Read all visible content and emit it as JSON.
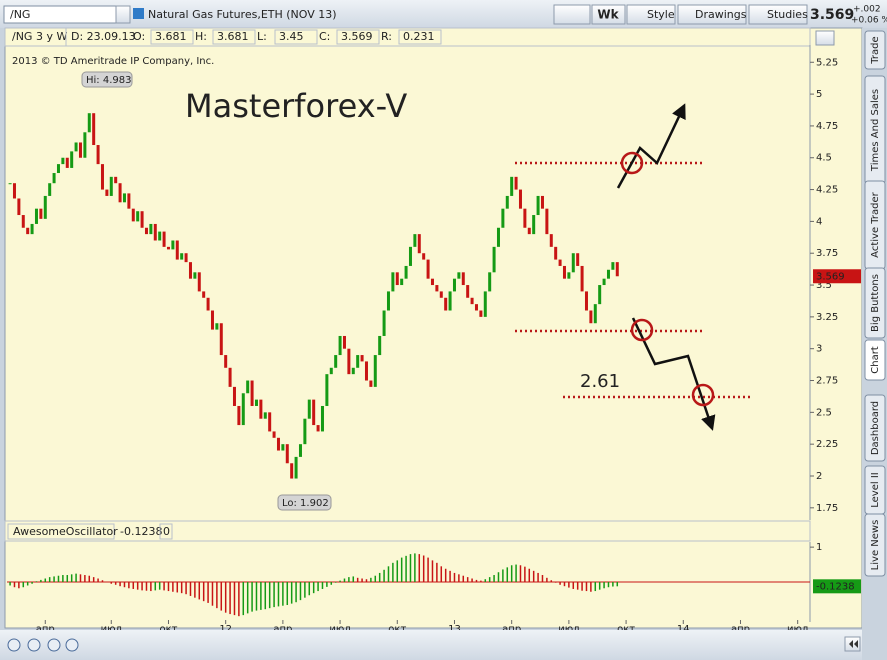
{
  "toolbar": {
    "symbol": "/NG",
    "description": "Natural Gas Futures,ETH (NOV 13)",
    "buttons": [
      "Wk",
      "Style",
      "Drawings",
      "Studies"
    ],
    "change": "+.002",
    "change_pct": "+0.06 %"
  },
  "info_bar": {
    "study": "/NG 3 y W",
    "date": "D: 23.09.13",
    "fields": [
      {
        "label": "O:",
        "value": 3.681
      },
      {
        "label": "H:",
        "value": 3.681
      },
      {
        "label": "L:",
        "value": 3.45
      },
      {
        "label": "C:",
        "value": 3.569
      },
      {
        "label": "R:",
        "value": 0.231
      }
    ]
  },
  "copyright": "2013 © TD Ameritrade IP Company, Inc.",
  "annotations": {
    "title": "Masterforex-V",
    "level": "2.61",
    "hi": "Hi: 4.983",
    "lo": "Lo: 1.902"
  },
  "sidebar": {
    "tabs": [
      "Trade",
      "Times And Sales",
      "Active Trader",
      "Big Buttons",
      "Chart",
      "Dashboard",
      "Level II",
      "Live News"
    ]
  },
  "chart_data": [
    {
      "type": "candlestick",
      "up_color": "#159a15",
      "down_color": "#c81414",
      "values": [
        4.3,
        4.18,
        4.05,
        3.95,
        3.9,
        3.98,
        4.1,
        4.02,
        4.2,
        4.3,
        4.38,
        4.45,
        4.5,
        4.42,
        4.55,
        4.62,
        4.5,
        4.7,
        4.85,
        4.6,
        4.45,
        4.25,
        4.2,
        4.35,
        4.3,
        4.15,
        4.22,
        4.1,
        4.0,
        4.08,
        3.95,
        3.9,
        3.98,
        3.85,
        3.92,
        3.8,
        3.78,
        3.85,
        3.7,
        3.75,
        3.68,
        3.55,
        3.6,
        3.45,
        3.4,
        3.3,
        3.15,
        3.2,
        2.95,
        2.85,
        2.7,
        2.55,
        2.4,
        2.65,
        2.75,
        2.55,
        2.6,
        2.45,
        2.5,
        2.35,
        2.3,
        2.2,
        2.25,
        2.1,
        1.98,
        2.15,
        2.25,
        2.45,
        2.6,
        2.4,
        2.35,
        2.55,
        2.8,
        2.85,
        2.95,
        3.1,
        3.0,
        2.8,
        2.85,
        2.95,
        2.9,
        2.75,
        2.7,
        2.95,
        3.1,
        3.3,
        3.45,
        3.6,
        3.5,
        3.55,
        3.65,
        3.8,
        3.9,
        3.75,
        3.7,
        3.55,
        3.5,
        3.45,
        3.4,
        3.3,
        3.45,
        3.55,
        3.6,
        3.5,
        3.4,
        3.35,
        3.3,
        3.25,
        3.45,
        3.6,
        3.8,
        3.95,
        4.1,
        4.2,
        4.35,
        4.25,
        4.1,
        3.95,
        3.9,
        4.05,
        4.2,
        4.1,
        3.9,
        3.8,
        3.7,
        3.65,
        3.55,
        3.6,
        3.75,
        3.65,
        3.45,
        3.3,
        3.2,
        3.35,
        3.5,
        3.55,
        3.62,
        3.68,
        3.569
      ],
      "xlim": [
        -0.7,
        181.8
      ],
      "ylim": [
        1.67,
        5.37
      ],
      "yticks": [
        5.25,
        5,
        4.75,
        4.5,
        4.25,
        4,
        3.75,
        3.5,
        3.25,
        3,
        2.75,
        2.5,
        2.25,
        2,
        1.75
      ]
    },
    {
      "type": "bar",
      "title": "AwesomeOscillator",
      "setting": "0",
      "up_color": "#159a15",
      "down_color": "#c81414",
      "zero_color": "#c81414",
      "values": [
        -0.1,
        -0.15,
        -0.18,
        -0.15,
        -0.1,
        -0.05,
        0.02,
        0.06,
        0.1,
        0.14,
        0.16,
        0.18,
        0.2,
        0.2,
        0.22,
        0.24,
        0.22,
        0.2,
        0.18,
        0.14,
        0.1,
        0.05,
        0.0,
        -0.05,
        -0.08,
        -0.12,
        -0.15,
        -0.18,
        -0.2,
        -0.22,
        -0.24,
        -0.25,
        -0.26,
        -0.24,
        -0.22,
        -0.24,
        -0.26,
        -0.28,
        -0.3,
        -0.32,
        -0.35,
        -0.4,
        -0.45,
        -0.5,
        -0.55,
        -0.6,
        -0.68,
        -0.75,
        -0.82,
        -0.88,
        -0.92,
        -0.95,
        -0.98,
        -0.95,
        -0.9,
        -0.85,
        -0.82,
        -0.8,
        -0.78,
        -0.75,
        -0.72,
        -0.7,
        -0.68,
        -0.66,
        -0.62,
        -0.58,
        -0.52,
        -0.45,
        -0.38,
        -0.32,
        -0.26,
        -0.2,
        -0.14,
        -0.08,
        -0.02,
        0.04,
        0.1,
        0.14,
        0.16,
        0.12,
        0.1,
        0.08,
        0.12,
        0.18,
        0.26,
        0.35,
        0.45,
        0.55,
        0.62,
        0.7,
        0.75,
        0.8,
        0.82,
        0.8,
        0.76,
        0.7,
        0.62,
        0.55,
        0.45,
        0.38,
        0.32,
        0.26,
        0.22,
        0.18,
        0.14,
        0.1,
        0.06,
        0.04,
        0.08,
        0.14,
        0.2,
        0.28,
        0.36,
        0.42,
        0.48,
        0.5,
        0.48,
        0.44,
        0.38,
        0.32,
        0.26,
        0.2,
        0.12,
        0.05,
        -0.02,
        -0.08,
        -0.12,
        -0.16,
        -0.2,
        -0.22,
        -0.25,
        -0.26,
        -0.28,
        -0.26,
        -0.22,
        -0.18,
        -0.15,
        -0.13,
        -0.1238
      ],
      "xlim": [
        -0.7,
        181.8
      ],
      "ylim": [
        -1.09,
        1.09
      ],
      "yticks": [
        1
      ],
      "xticks": [
        {
          "value": 8,
          "label": "апр"
        },
        {
          "value": 23,
          "label": "июл"
        },
        {
          "value": 36,
          "label": "окт"
        },
        {
          "value": 49,
          "label": "12"
        },
        {
          "value": 62,
          "label": "апр"
        },
        {
          "value": 75,
          "label": "июл"
        },
        {
          "value": 88,
          "label": "окт"
        },
        {
          "value": 101,
          "label": "13"
        },
        {
          "value": 114,
          "label": "апр"
        },
        {
          "value": 127,
          "label": "июл"
        },
        {
          "value": 140,
          "label": "окт"
        },
        {
          "value": 153,
          "label": "14"
        },
        {
          "value": 166,
          "label": "апр"
        },
        {
          "value": 179,
          "label": "июл"
        }
      ]
    }
  ]
}
